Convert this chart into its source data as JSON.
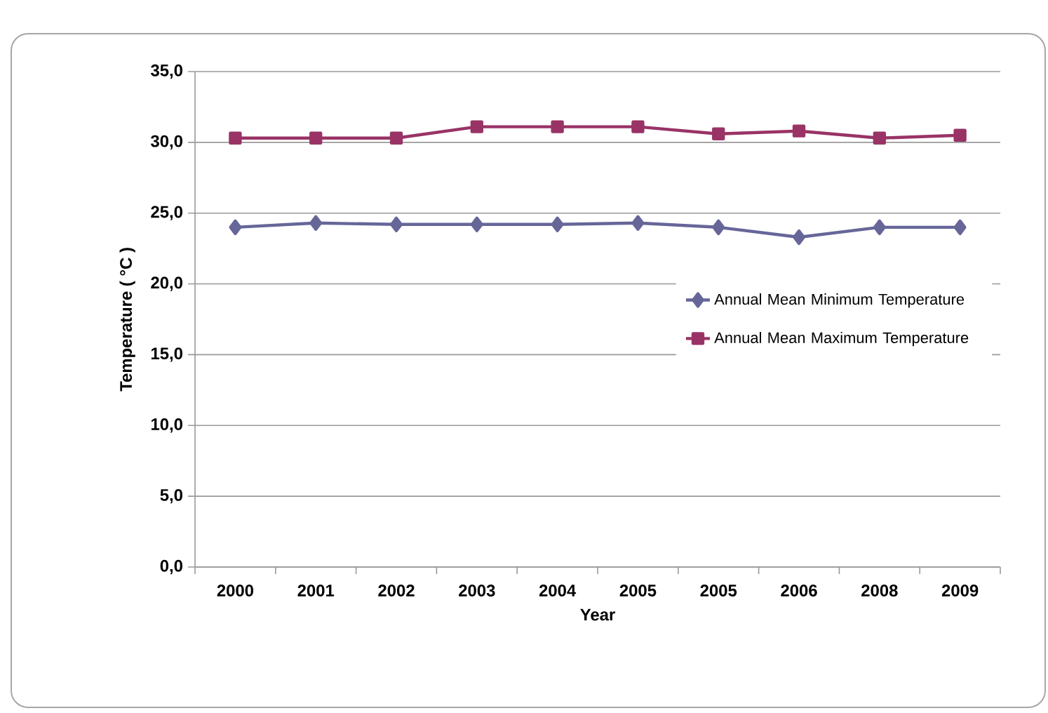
{
  "chart_data": {
    "type": "line",
    "xlabel": "Year",
    "ylabel": "Temperature ( °C )",
    "categories": [
      "2000",
      "2001",
      "2002",
      "2003",
      "2004",
      "2005",
      "2005",
      "2006",
      "2008",
      "2009"
    ],
    "series": [
      {
        "name": "Annual Mean Minimum Temperature",
        "color": "#666699",
        "marker": "diamond",
        "values": [
          24.0,
          24.3,
          24.2,
          24.2,
          24.2,
          24.3,
          24.0,
          23.3,
          24.0,
          24.0
        ]
      },
      {
        "name": "Annual Mean Maximum Temperature",
        "color": "#993366",
        "marker": "square",
        "values": [
          30.3,
          30.3,
          30.3,
          31.1,
          31.1,
          31.1,
          30.6,
          30.8,
          30.3,
          30.5
        ]
      }
    ],
    "ylim": [
      0,
      35
    ],
    "yticks": [
      {
        "value": 0,
        "label": "0,0"
      },
      {
        "value": 5,
        "label": "5,0"
      },
      {
        "value": 10,
        "label": "10,0"
      },
      {
        "value": 15,
        "label": "15,0"
      },
      {
        "value": 20,
        "label": "20,0"
      },
      {
        "value": 25,
        "label": "25,0"
      },
      {
        "value": 30,
        "label": "30,0"
      },
      {
        "value": 35,
        "label": "35,0"
      }
    ],
    "grid": "y",
    "legend": "right",
    "line_style": "solid"
  }
}
